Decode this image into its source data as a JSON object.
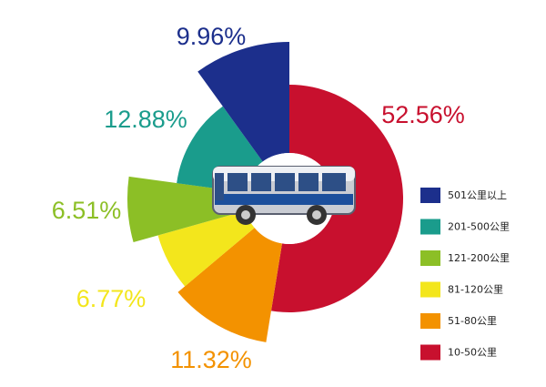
{
  "chart_data": {
    "type": "pie",
    "categories": [
      "10-50公里",
      "51-80公里",
      "81-120公里",
      "121-200公里",
      "201-500公里",
      "501公里以上"
    ],
    "values": [
      52.56,
      11.32,
      6.77,
      6.51,
      12.88,
      9.96
    ],
    "value_labels": [
      "52.56%",
      "11.32%",
      "6.77%",
      "6.51%",
      "12.88%",
      "9.96%"
    ],
    "colors": [
      "#c8102e",
      "#f39200",
      "#f3e61c",
      "#8cbf26",
      "#1a9c8c",
      "#1c2f8c"
    ]
  }
}
